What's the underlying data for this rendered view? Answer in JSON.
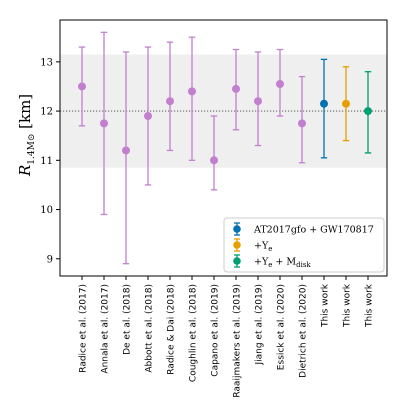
{
  "chart_data": {
    "type": "scatter",
    "title": "",
    "ylabel": "R_{1.4M⊙} [km]",
    "ylabel_main": "R",
    "ylabel_sub": "1.4M⊙",
    "ylabel_unit": "[km]",
    "xlabel": "",
    "ylim": [
      8.65,
      13.85
    ],
    "yticks": [
      9,
      10,
      11,
      12,
      13
    ],
    "grid": false,
    "legend_position": "lower-right",
    "band": {
      "low": 10.85,
      "high": 13.15,
      "color": "#efefef"
    },
    "reference_line": {
      "y": 12.0,
      "style": "dotted"
    },
    "categories": [
      "Radice et al. (2017)",
      "Annala et al. (2017)",
      "De et al. (2018)",
      "Abbott et al. (2018)",
      "Radice & Dai (2018)",
      "Coughlin et al. (2018)",
      "Capano et al. (2019)",
      "Raaijmakers et al. (2019)",
      "Jiang et al. (2019)",
      "Essick et al. (2020)",
      "Dietrich et al. (2020)",
      "This work",
      "This work",
      "This work"
    ],
    "points": [
      {
        "y": 12.5,
        "low": 11.7,
        "high": 13.3,
        "color": "#c27fd0"
      },
      {
        "y": 11.75,
        "low": 9.9,
        "high": 13.6,
        "color": "#c27fd0"
      },
      {
        "y": 11.2,
        "low": 8.9,
        "high": 13.2,
        "color": "#c27fd0"
      },
      {
        "y": 11.9,
        "low": 10.5,
        "high": 13.3,
        "color": "#c27fd0"
      },
      {
        "y": 12.2,
        "low": 11.2,
        "high": 13.4,
        "color": "#c27fd0"
      },
      {
        "y": 12.4,
        "low": 11.0,
        "high": 13.5,
        "color": "#c27fd0"
      },
      {
        "y": 11.0,
        "low": 10.4,
        "high": 11.9,
        "color": "#c27fd0"
      },
      {
        "y": 12.45,
        "low": 11.62,
        "high": 13.25,
        "color": "#c27fd0"
      },
      {
        "y": 12.2,
        "low": 11.3,
        "high": 13.2,
        "color": "#c27fd0"
      },
      {
        "y": 12.55,
        "low": 11.9,
        "high": 13.25,
        "color": "#c27fd0"
      },
      {
        "y": 11.75,
        "low": 10.95,
        "high": 12.7,
        "color": "#c27fd0"
      },
      {
        "y": 12.15,
        "low": 11.05,
        "high": 13.05,
        "color": "#0072b2"
      },
      {
        "y": 12.15,
        "low": 11.4,
        "high": 12.9,
        "color": "#e69f00"
      },
      {
        "y": 12.0,
        "low": 11.15,
        "high": 12.8,
        "color": "#009e73"
      }
    ],
    "legend": [
      {
        "label": "AT2017gfo + GW170817",
        "color": "#0072b2"
      },
      {
        "label": "+Y_e",
        "color": "#e69f00",
        "main": "+Y",
        "sub": "e"
      },
      {
        "label": "+Y_e + M_disk",
        "color": "#009e73",
        "main": "+Y",
        "sub": "e",
        "tail": " + M",
        "tail_sub": "disk"
      }
    ]
  }
}
